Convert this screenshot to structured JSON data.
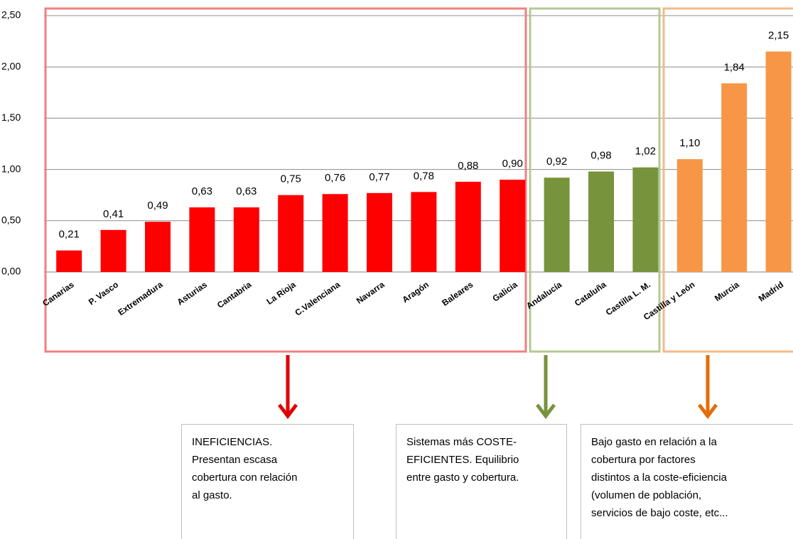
{
  "chart_data": {
    "type": "bar",
    "categories": [
      "Canarias",
      "P. Vasco",
      "Extremadura",
      "Asturias",
      "Cantabria",
      "La Rioja",
      "C.Valenciana",
      "Navarra",
      "Aragón",
      "Baleares",
      "Galicia",
      "Andalucía",
      "Cataluña",
      "Castilla L. M.",
      "Castilla y León",
      "Murcia",
      "Madrid"
    ],
    "values": [
      0.21,
      0.41,
      0.49,
      0.63,
      0.63,
      0.75,
      0.76,
      0.77,
      0.78,
      0.88,
      0.9,
      0.92,
      0.98,
      1.02,
      1.1,
      1.84,
      2.15
    ],
    "value_labels": [
      "0,21",
      "0,41",
      "0,49",
      "0,63",
      "0,63",
      "0,75",
      "0,76",
      "0,77",
      "0,78",
      "0,88",
      "0,90",
      "0,92",
      "0,98",
      "1,02",
      "1,10",
      "1,84",
      "2,15"
    ],
    "colors": [
      "#ff0000",
      "#ff0000",
      "#ff0000",
      "#ff0000",
      "#ff0000",
      "#ff0000",
      "#ff0000",
      "#ff0000",
      "#ff0000",
      "#ff0000",
      "#ff0000",
      "#77933c",
      "#77933c",
      "#77933c",
      "#f79646",
      "#f79646",
      "#f79646"
    ],
    "ylim": [
      0,
      2.5
    ],
    "yticks": [
      {
        "value": 0,
        "label": "0,00"
      },
      {
        "value": 0.5,
        "label": "0,50"
      },
      {
        "value": 1,
        "label": "1,00"
      },
      {
        "value": 1.5,
        "label": "1,50"
      },
      {
        "value": 2,
        "label": "2,00"
      },
      {
        "value": 2.5,
        "label": "2,50"
      }
    ],
    "grid": true,
    "annotations": [
      {
        "lines": [
          "INEFICIENCIAS.",
          "Presentan escasa",
          "cobertura con relación",
          "al gasto."
        ]
      },
      {
        "lines": [
          "Sistemas más COSTE-",
          "EFICIENTES. Equilibrio",
          "entre gasto y cobertura."
        ]
      },
      {
        "lines": [
          "Bajo gasto en relación a la",
          "cobertura por factores",
          "distintos a la coste-eficiencia",
          "(volumen de población,",
          "servicios de bajo coste, etc..."
        ]
      }
    ]
  }
}
